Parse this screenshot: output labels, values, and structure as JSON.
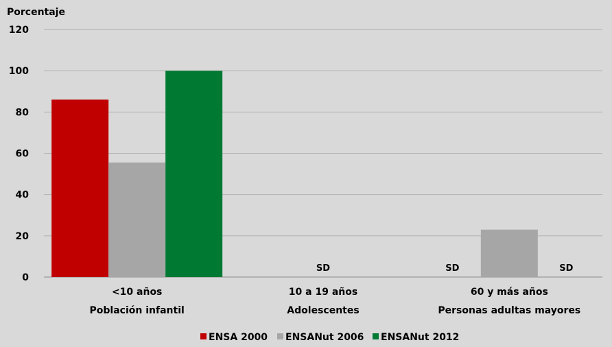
{
  "chart_data": {
    "type": "bar",
    "ylabel": "Porcentaje",
    "ylim": [
      0,
      120
    ],
    "yticks": [
      0,
      20,
      40,
      60,
      80,
      100,
      120
    ],
    "categories": [
      {
        "line1": "<10 años",
        "line2": "Población infantil"
      },
      {
        "line1": "10 a 19 años",
        "line2": "Adolescentes"
      },
      {
        "line1": "60 y más años",
        "line2": "Personas adultas mayores"
      }
    ],
    "series": [
      {
        "name": "ENSA 2000",
        "color": "#c00000",
        "values": [
          86,
          null,
          null
        ]
      },
      {
        "name": "ENSANut 2006",
        "color": "#a6a6a6",
        "values": [
          55.5,
          null,
          23
        ]
      },
      {
        "name": "ENSANut 2012",
        "color": "#007a33",
        "values": [
          100,
          null,
          null
        ]
      }
    ],
    "missing_label": "SD",
    "missing_marks": [
      {
        "category": 1,
        "series": 1
      },
      {
        "category": 2,
        "series": 0
      },
      {
        "category": 2,
        "series": 2
      }
    ],
    "grid": true,
    "legend_position": "bottom"
  }
}
